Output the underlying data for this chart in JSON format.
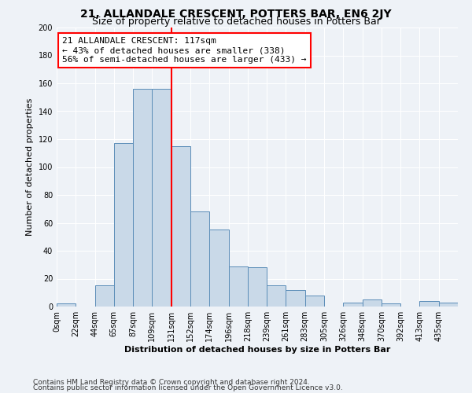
{
  "title": "21, ALLANDALE CRESCENT, POTTERS BAR, EN6 2JY",
  "subtitle": "Size of property relative to detached houses in Potters Bar",
  "xlabel": "Distribution of detached houses by size in Potters Bar",
  "ylabel": "Number of detached properties",
  "bin_labels": [
    "0sqm",
    "22sqm",
    "44sqm",
    "65sqm",
    "87sqm",
    "109sqm",
    "131sqm",
    "152sqm",
    "174sqm",
    "196sqm",
    "218sqm",
    "239sqm",
    "261sqm",
    "283sqm",
    "305sqm",
    "326sqm",
    "348sqm",
    "370sqm",
    "392sqm",
    "413sqm",
    "435sqm"
  ],
  "bar_heights": [
    2,
    0,
    15,
    117,
    156,
    156,
    115,
    68,
    55,
    29,
    28,
    15,
    12,
    8,
    0,
    3,
    5,
    2,
    0,
    4,
    3
  ],
  "bar_color": "#c9d9e8",
  "bar_edge_color": "#5b8db8",
  "vline_x": 6,
  "vline_color": "red",
  "annotation_line1": "21 ALLANDALE CRESCENT: 117sqm",
  "annotation_line2": "← 43% of detached houses are smaller (338)",
  "annotation_line3": "56% of semi-detached houses are larger (433) →",
  "annotation_box_color": "white",
  "annotation_box_edge": "red",
  "ylim": [
    0,
    200
  ],
  "yticks": [
    0,
    20,
    40,
    60,
    80,
    100,
    120,
    140,
    160,
    180,
    200
  ],
  "footer1": "Contains HM Land Registry data © Crown copyright and database right 2024.",
  "footer2": "Contains public sector information licensed under the Open Government Licence v3.0.",
  "background_color": "#eef2f7",
  "grid_color": "#ffffff",
  "title_fontsize": 10,
  "subtitle_fontsize": 9,
  "axis_label_fontsize": 8,
  "tick_fontsize": 7,
  "annotation_fontsize": 8,
  "footer_fontsize": 6.5
}
